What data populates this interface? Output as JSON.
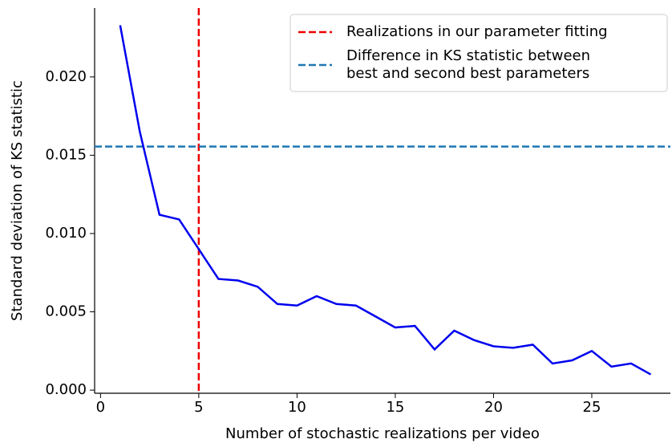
{
  "chart_data": {
    "type": "line",
    "x_label": "Number of stochastic realizations per video",
    "y_label": "Standard deviation of KS statistic",
    "x": [
      1,
      2,
      3,
      4,
      5,
      6,
      7,
      8,
      9,
      10,
      11,
      12,
      13,
      14,
      15,
      16,
      17,
      18,
      19,
      20,
      21,
      22,
      23,
      24,
      25,
      26,
      27,
      28
    ],
    "series": [
      {
        "color": "#0000ee",
        "values": [
          0.0233,
          0.0165,
          0.0112,
          0.0109,
          0.009,
          0.0071,
          0.007,
          0.0066,
          0.0055,
          0.0054,
          0.006,
          0.0055,
          0.0054,
          0.0047,
          0.004,
          0.0041,
          0.0026,
          0.0038,
          0.0032,
          0.0028,
          0.0027,
          0.0029,
          0.0017,
          0.0019,
          0.0025,
          0.0015,
          0.0017,
          0.001
        ]
      }
    ],
    "reference_lines": [
      {
        "orientation": "vertical",
        "value": 5,
        "color": "#ee0000",
        "label": "Realizations in our parameter fitting"
      },
      {
        "orientation": "horizontal",
        "value": 0.01555,
        "color": "#1f77b4",
        "label": "Difference in KS statistic between\nbest and second best parameters"
      }
    ],
    "xlim": [
      -0.3,
      29.0
    ],
    "ylim": [
      -0.0002,
      0.0244
    ],
    "xticks": [
      0,
      5,
      10,
      15,
      20,
      25
    ],
    "yticks": [
      {
        "value": 0,
        "label": "0.000"
      },
      {
        "value": 0.005,
        "label": "0.005"
      },
      {
        "value": 0.01,
        "label": "0.010"
      },
      {
        "value": 0.015,
        "label": "0.015"
      },
      {
        "value": 0.02,
        "label": "0.020"
      }
    ],
    "legend": "upper right"
  }
}
